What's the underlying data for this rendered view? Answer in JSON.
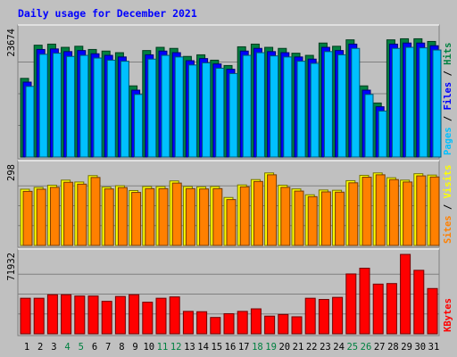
{
  "title": "Daily usage for December 2021",
  "chart_data": {
    "type": "bar",
    "title": "Daily usage for December 2021",
    "categories": [
      "1",
      "2",
      "3",
      "4",
      "5",
      "6",
      "7",
      "8",
      "9",
      "10",
      "11",
      "12",
      "13",
      "14",
      "15",
      "16",
      "17",
      "18",
      "19",
      "20",
      "21",
      "22",
      "23",
      "24",
      "25",
      "26",
      "27",
      "28",
      "29",
      "30",
      "31"
    ],
    "weekend_days": [
      "4",
      "5",
      "11",
      "12",
      "18",
      "19",
      "25",
      "26"
    ],
    "panels": [
      {
        "id": "hits-files-pages",
        "max_label": "23674",
        "ylim": [
          0,
          23674
        ],
        "legend": [
          {
            "label": "Pages",
            "color": "#00c0ff"
          },
          {
            "label": "Files",
            "color": "#0000ff"
          },
          {
            "label": "Hits",
            "color": "#008040"
          }
        ],
        "legend_separator": " / ",
        "series": [
          {
            "name": "Hits",
            "color": "#008040",
            "values": [
              14700,
              20900,
              21100,
              20500,
              20700,
              20100,
              19800,
              19500,
              13300,
              19900,
              20500,
              20300,
              18800,
              19100,
              18100,
              17100,
              20600,
              21100,
              20500,
              20300,
              19400,
              19000,
              21300,
              20700,
              21900,
              13300,
              10100,
              21900,
              22100,
              22100,
              21600
            ]
          },
          {
            "name": "Files",
            "color": "#0000ff",
            "values": [
              14300,
              20400,
              20500,
              20000,
              20200,
              19600,
              19300,
              19000,
              12800,
              19400,
              20100,
              19800,
              18300,
              18700,
              17700,
              16700,
              20100,
              20600,
              20000,
              19800,
              19000,
              18600,
              20800,
              20200,
              21400,
              12800,
              9700,
              21400,
              21600,
              21600,
              21100
            ]
          },
          {
            "name": "Pages",
            "color": "#00c0ff",
            "values": [
              13800,
              19800,
              20000,
              19400,
              19600,
              19100,
              18700,
              18500,
              12300,
              18900,
              19600,
              19300,
              17800,
              18200,
              17200,
              16200,
              19600,
              20100,
              19500,
              19300,
              18500,
              18100,
              20300,
              19700,
              20900,
              12300,
              9200,
              20900,
              21100,
              21000,
              20600
            ]
          }
        ]
      },
      {
        "id": "visits-sites",
        "max_label": "298",
        "ylim": [
          0,
          298
        ],
        "legend": [
          {
            "label": "Sites",
            "color": "#ff8000"
          },
          {
            "label": "Visits",
            "color": "#ffff00"
          }
        ],
        "legend_separator": " / ",
        "series": [
          {
            "name": "Visits",
            "color": "#ffff00",
            "values": [
              211,
              218,
              226,
              245,
              238,
              262,
              219,
              224,
              206,
              221,
              221,
              242,
              221,
              220,
              221,
              180,
              227,
              247,
              272,
              226,
              212,
              190,
              208,
              207,
              243,
              263,
              272,
              254,
              245,
              269,
              264
            ]
          },
          {
            "name": "Sites",
            "color": "#ff8000",
            "values": [
              209,
              217,
              224,
              243,
              236,
              261,
              218,
              223,
              205,
              219,
              219,
              240,
              219,
              218,
              219,
              178,
              226,
              246,
              271,
              224,
              210,
              189,
              207,
              206,
              241,
              262,
              271,
              253,
              244,
              267,
              263
            ]
          }
        ]
      },
      {
        "id": "kbytes",
        "max_label": "71932",
        "ylim": [
          0,
          71932
        ],
        "legend": [
          {
            "label": "KBytes",
            "color": "#ff0000"
          }
        ],
        "legend_separator": "",
        "series": [
          {
            "name": "KBytes",
            "color": "#ff0000",
            "values": [
              32200,
              32200,
              35400,
              35400,
              34200,
              34200,
              29400,
              33800,
              35400,
              28600,
              32200,
              33400,
              20300,
              20000,
              14800,
              18200,
              20300,
              22600,
              16000,
              17500,
              15400,
              32200,
              31100,
              33000,
              54200,
              59400,
              45000,
              45500,
              71900,
              57500,
              41000
            ]
          }
        ]
      }
    ]
  }
}
